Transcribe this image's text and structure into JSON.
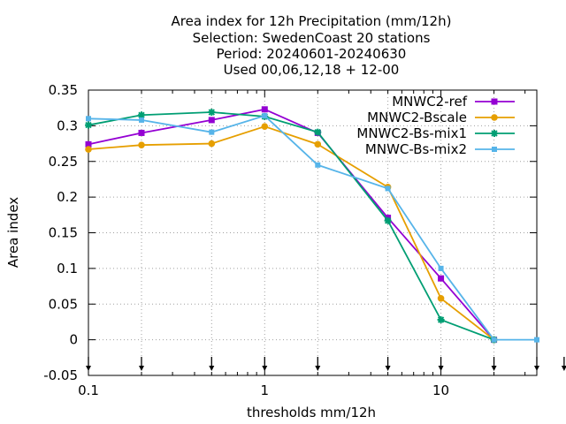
{
  "chart_data": {
    "type": "line",
    "title_lines": [
      "Area index  for 12h Precipitation (mm/12h)",
      "Selection: SwedenCoast     20 stations",
      "Period: 20240601-20240630",
      "Used 00,06,12,18 + 12-00"
    ],
    "xlabel": "thresholds mm/12h",
    "ylabel": "Area index",
    "x_scale": "log",
    "xlim": [
      0.1,
      35
    ],
    "ylim": [
      -0.05,
      0.35
    ],
    "x_ticks": [
      0.1,
      1,
      10
    ],
    "x_tick_labels": [
      "0.1",
      "1",
      "10"
    ],
    "y_ticks": [
      -0.05,
      0,
      0.05,
      0.1,
      0.15,
      0.2,
      0.25,
      0.3,
      0.35
    ],
    "y_tick_labels": [
      "-0.05",
      "0",
      "0.05",
      "0.1",
      "0.15",
      "0.2",
      "0.25",
      "0.3",
      "0.35"
    ],
    "grid": true,
    "legend_position": "top-right",
    "x": [
      0.1,
      0.2,
      0.5,
      1,
      2,
      5,
      10,
      20,
      35
    ],
    "arrow_marks_x": [
      0.1,
      0.2,
      0.5,
      1,
      2,
      5,
      10,
      20,
      35,
      50
    ],
    "series": [
      {
        "name": "MNWC2-ref",
        "color": "#9400d3",
        "marker": "square",
        "values": [
          0.274,
          0.29,
          0.308,
          0.323,
          0.29,
          0.171,
          0.086,
          0.0,
          null
        ]
      },
      {
        "name": "MNWC2-Bscale",
        "color": "#e69f00",
        "marker": "circle",
        "values": [
          0.267,
          0.273,
          0.275,
          0.299,
          0.274,
          0.214,
          0.058,
          0.0,
          null
        ]
      },
      {
        "name": "MNWC2-Bs-mix1",
        "color": "#009e73",
        "marker": "star",
        "values": [
          0.301,
          0.315,
          0.319,
          0.313,
          0.291,
          0.167,
          0.028,
          0.0,
          null
        ]
      },
      {
        "name": "MNWC-Bs-mix2",
        "color": "#56b4e9",
        "marker": "box",
        "values": [
          0.31,
          0.308,
          0.291,
          0.314,
          0.245,
          0.212,
          0.1,
          0.0,
          0.0
        ]
      }
    ]
  }
}
